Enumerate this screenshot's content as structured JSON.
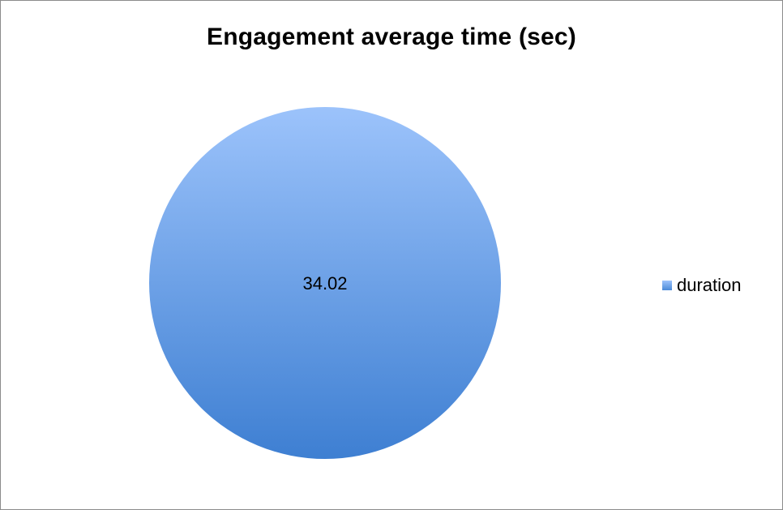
{
  "chart_data": {
    "type": "pie",
    "title": "Engagement average time (sec)",
    "categories": [
      "duration"
    ],
    "values": [
      34.02
    ],
    "data_labels": [
      "34.02"
    ],
    "legend_position": "right",
    "colors": {
      "slice_top": "#9cc3fb",
      "slice_bottom": "#3e7fd2"
    }
  }
}
